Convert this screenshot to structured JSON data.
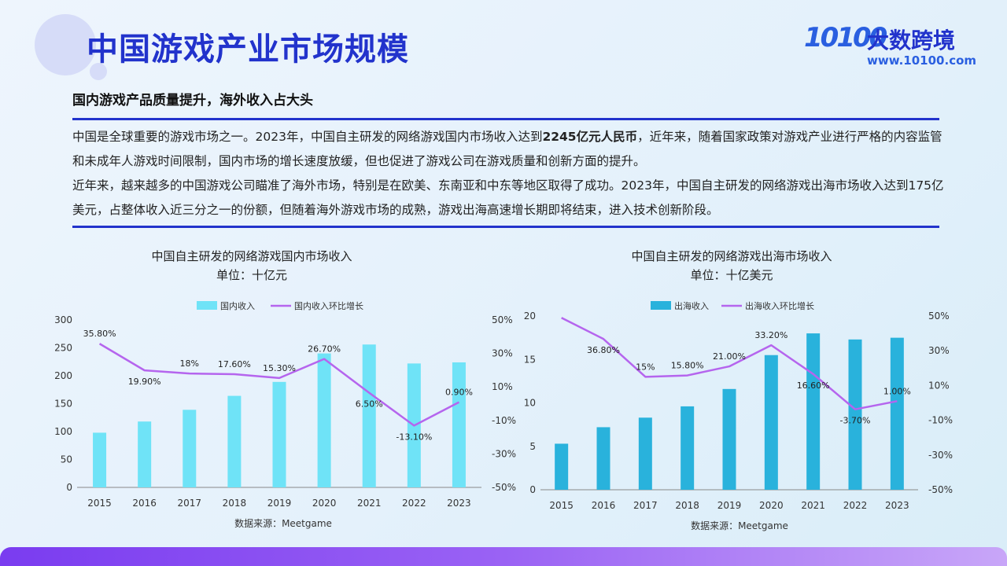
{
  "page": {
    "title": "中国游戏产业市场规模",
    "subtitle": "国内游戏产品质量提升，海外收入占大头",
    "logo": {
      "mark": "10100",
      "name": "大数跨境",
      "url": "www.10100.com"
    },
    "paragraph1": {
      "before": "中国是全球重要的游戏市场之一。2023年，中国自主研发的网络游戏国内市场收入达到",
      "bold": "2245亿元人民币",
      "after": "，近年来，随着国家政策对游戏产业进行严格的内容监管和未成年人游戏时间限制，国内市场的增长速度放缓，但也促进了游戏公司在游戏质量和创新方面的提升。"
    },
    "paragraph2": "近年来，越来越多的中国游戏公司瞄准了海外市场，特别是在欧美、东南亚和中东等地区取得了成功。2023年，中国自主研发的网络游戏出海市场收入达到175亿美元，占整体收入近三分之一的份额，但随着海外游戏市场的成熟，游戏出海高速增长期即将结束，进入技术创新阶段。",
    "colors": {
      "accent": "#2233cc",
      "bar_domestic": "#6fe3f7",
      "bar_overseas": "#29b2dc",
      "line": "#b565ee"
    }
  },
  "chart_data": [
    {
      "type": "bar",
      "title": "中国自主研发的网络游戏国内市场收入",
      "subtitle": "单位：十亿元",
      "source": "数据来源：Meetgame",
      "categories": [
        "2015",
        "2016",
        "2017",
        "2018",
        "2019",
        "2020",
        "2021",
        "2022",
        "2023"
      ],
      "ylim": [
        0,
        300
      ],
      "yticks": [
        "300",
        "250",
        "200",
        "150",
        "100",
        "50",
        "0"
      ],
      "y2lim": [
        -50,
        50
      ],
      "y2ticks": [
        "50%",
        "30%",
        "10%",
        "-10%",
        "-30%",
        "-50%"
      ],
      "series": [
        {
          "name": "国内收入",
          "type": "bar",
          "values": [
            98,
            118,
            139,
            164,
            189,
            240,
            256,
            222,
            224
          ]
        },
        {
          "name": "国内收入环比增长",
          "type": "line",
          "axis": "y2",
          "values": [
            35.8,
            19.9,
            18.0,
            17.6,
            15.3,
            26.7,
            6.5,
            -13.1,
            0.9
          ],
          "labels": [
            "35.80%",
            "19.90%",
            "18%",
            "17.60%",
            "15.30%",
            "26.70%",
            "6.50%",
            "-13.10%",
            "0.90%"
          ]
        }
      ]
    },
    {
      "type": "bar",
      "title": "中国自主研发的网络游戏出海市场收入",
      "subtitle": "单位：十亿美元",
      "source": "数据来源：Meetgame",
      "categories": [
        "2015",
        "2016",
        "2017",
        "2018",
        "2019",
        "2020",
        "2021",
        "2022",
        "2023"
      ],
      "ylim": [
        0,
        20
      ],
      "yticks": [
        "20",
        "15",
        "10",
        "5",
        "0"
      ],
      "y2lim": [
        -50,
        50
      ],
      "y2ticks": [
        "50%",
        "30%",
        "10%",
        "-10%",
        "-30%",
        "-50%"
      ],
      "series": [
        {
          "name": "出海收入",
          "type": "bar",
          "values": [
            5.3,
            7.2,
            8.3,
            9.6,
            11.6,
            15.5,
            18.0,
            17.3,
            17.5
          ]
        },
        {
          "name": "出海收入环比增长",
          "type": "line",
          "axis": "y2",
          "values": [
            49.0,
            36.8,
            15.0,
            15.8,
            21.0,
            33.2,
            16.6,
            -3.7,
            1.0
          ],
          "labels": [
            "",
            "36.80%",
            "15%",
            "15.80%",
            "21.00%",
            "33.20%",
            "16.60%",
            "-3.70%",
            "1.00%"
          ]
        }
      ]
    }
  ]
}
